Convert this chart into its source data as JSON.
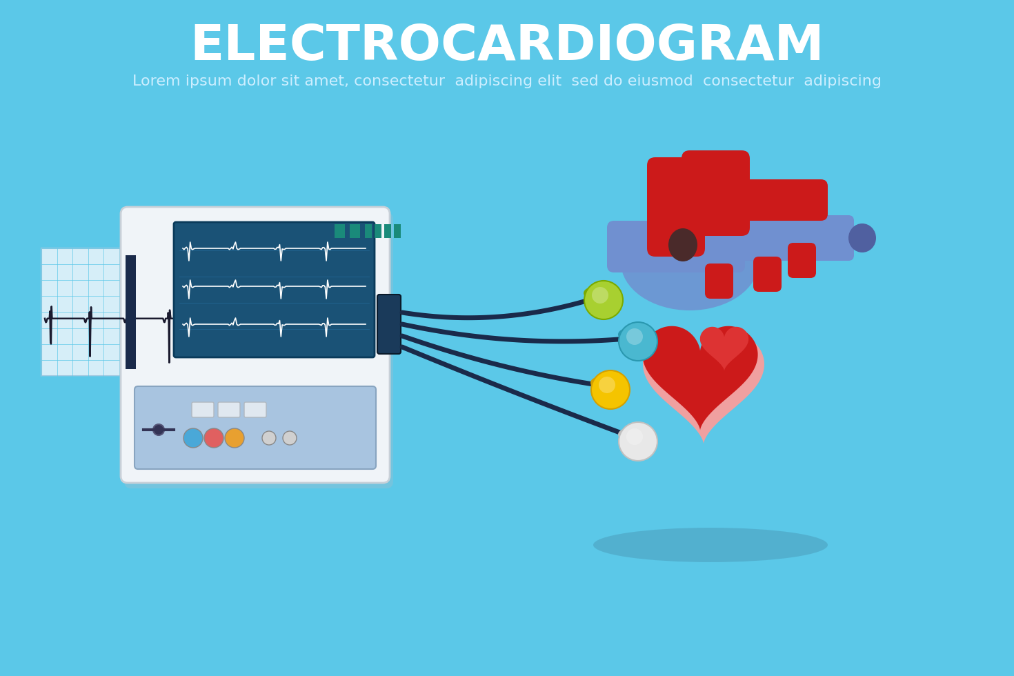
{
  "bg_color": "#5bc8e8",
  "title": "ELECTROCARDIOGRAM",
  "subtitle": "Lorem ipsum dolor sit amet, consectetur  adipiscing elit  sed do eiusmod  consectetur  adipiscing",
  "title_color": "#ffffff",
  "subtitle_color": "#cceeff",
  "title_fontsize": 52,
  "subtitle_fontsize": 16,
  "machine_body_color": "#f0f4f8",
  "machine_shadow_color": "#dde4ea",
  "screen_bg_color": "#1a5276",
  "screen_grid_color": "#2874a6",
  "ecg_tape_color": "#d6eef8",
  "ecg_tape_grid_color": "#5bc8e8",
  "ecg_line_color": "#1a1a2e",
  "ecg_screen_line_color": "#ffffff",
  "connector_color": "#1a2a4a",
  "electrode_green_color": "#a8d030",
  "electrode_green_dark": "#7aaa00",
  "electrode_yellow_color": "#f5c400",
  "electrode_yellow_dark": "#d4a000",
  "electrode_blue_color": "#4ab8d0",
  "electrode_blue_dark": "#2a98b0",
  "electrode_white_color": "#e8e8e8",
  "electrode_white_dark": "#c0c0c0",
  "heart_red_color": "#cc1a1a",
  "heart_red_dark": "#aa0000",
  "heart_red_bright": "#dd3333",
  "heart_pink_color": "#f0a0a0",
  "heart_blue_color": "#7090d0",
  "heart_blue_dark": "#5070b0",
  "teal_accent": "#1a8a7a",
  "teal_indicator": "#2ab89a",
  "button_colors": [
    "#4aa8d8",
    "#e06060",
    "#e8a030",
    "#d0d0d0",
    "#d0d0d0"
  ]
}
